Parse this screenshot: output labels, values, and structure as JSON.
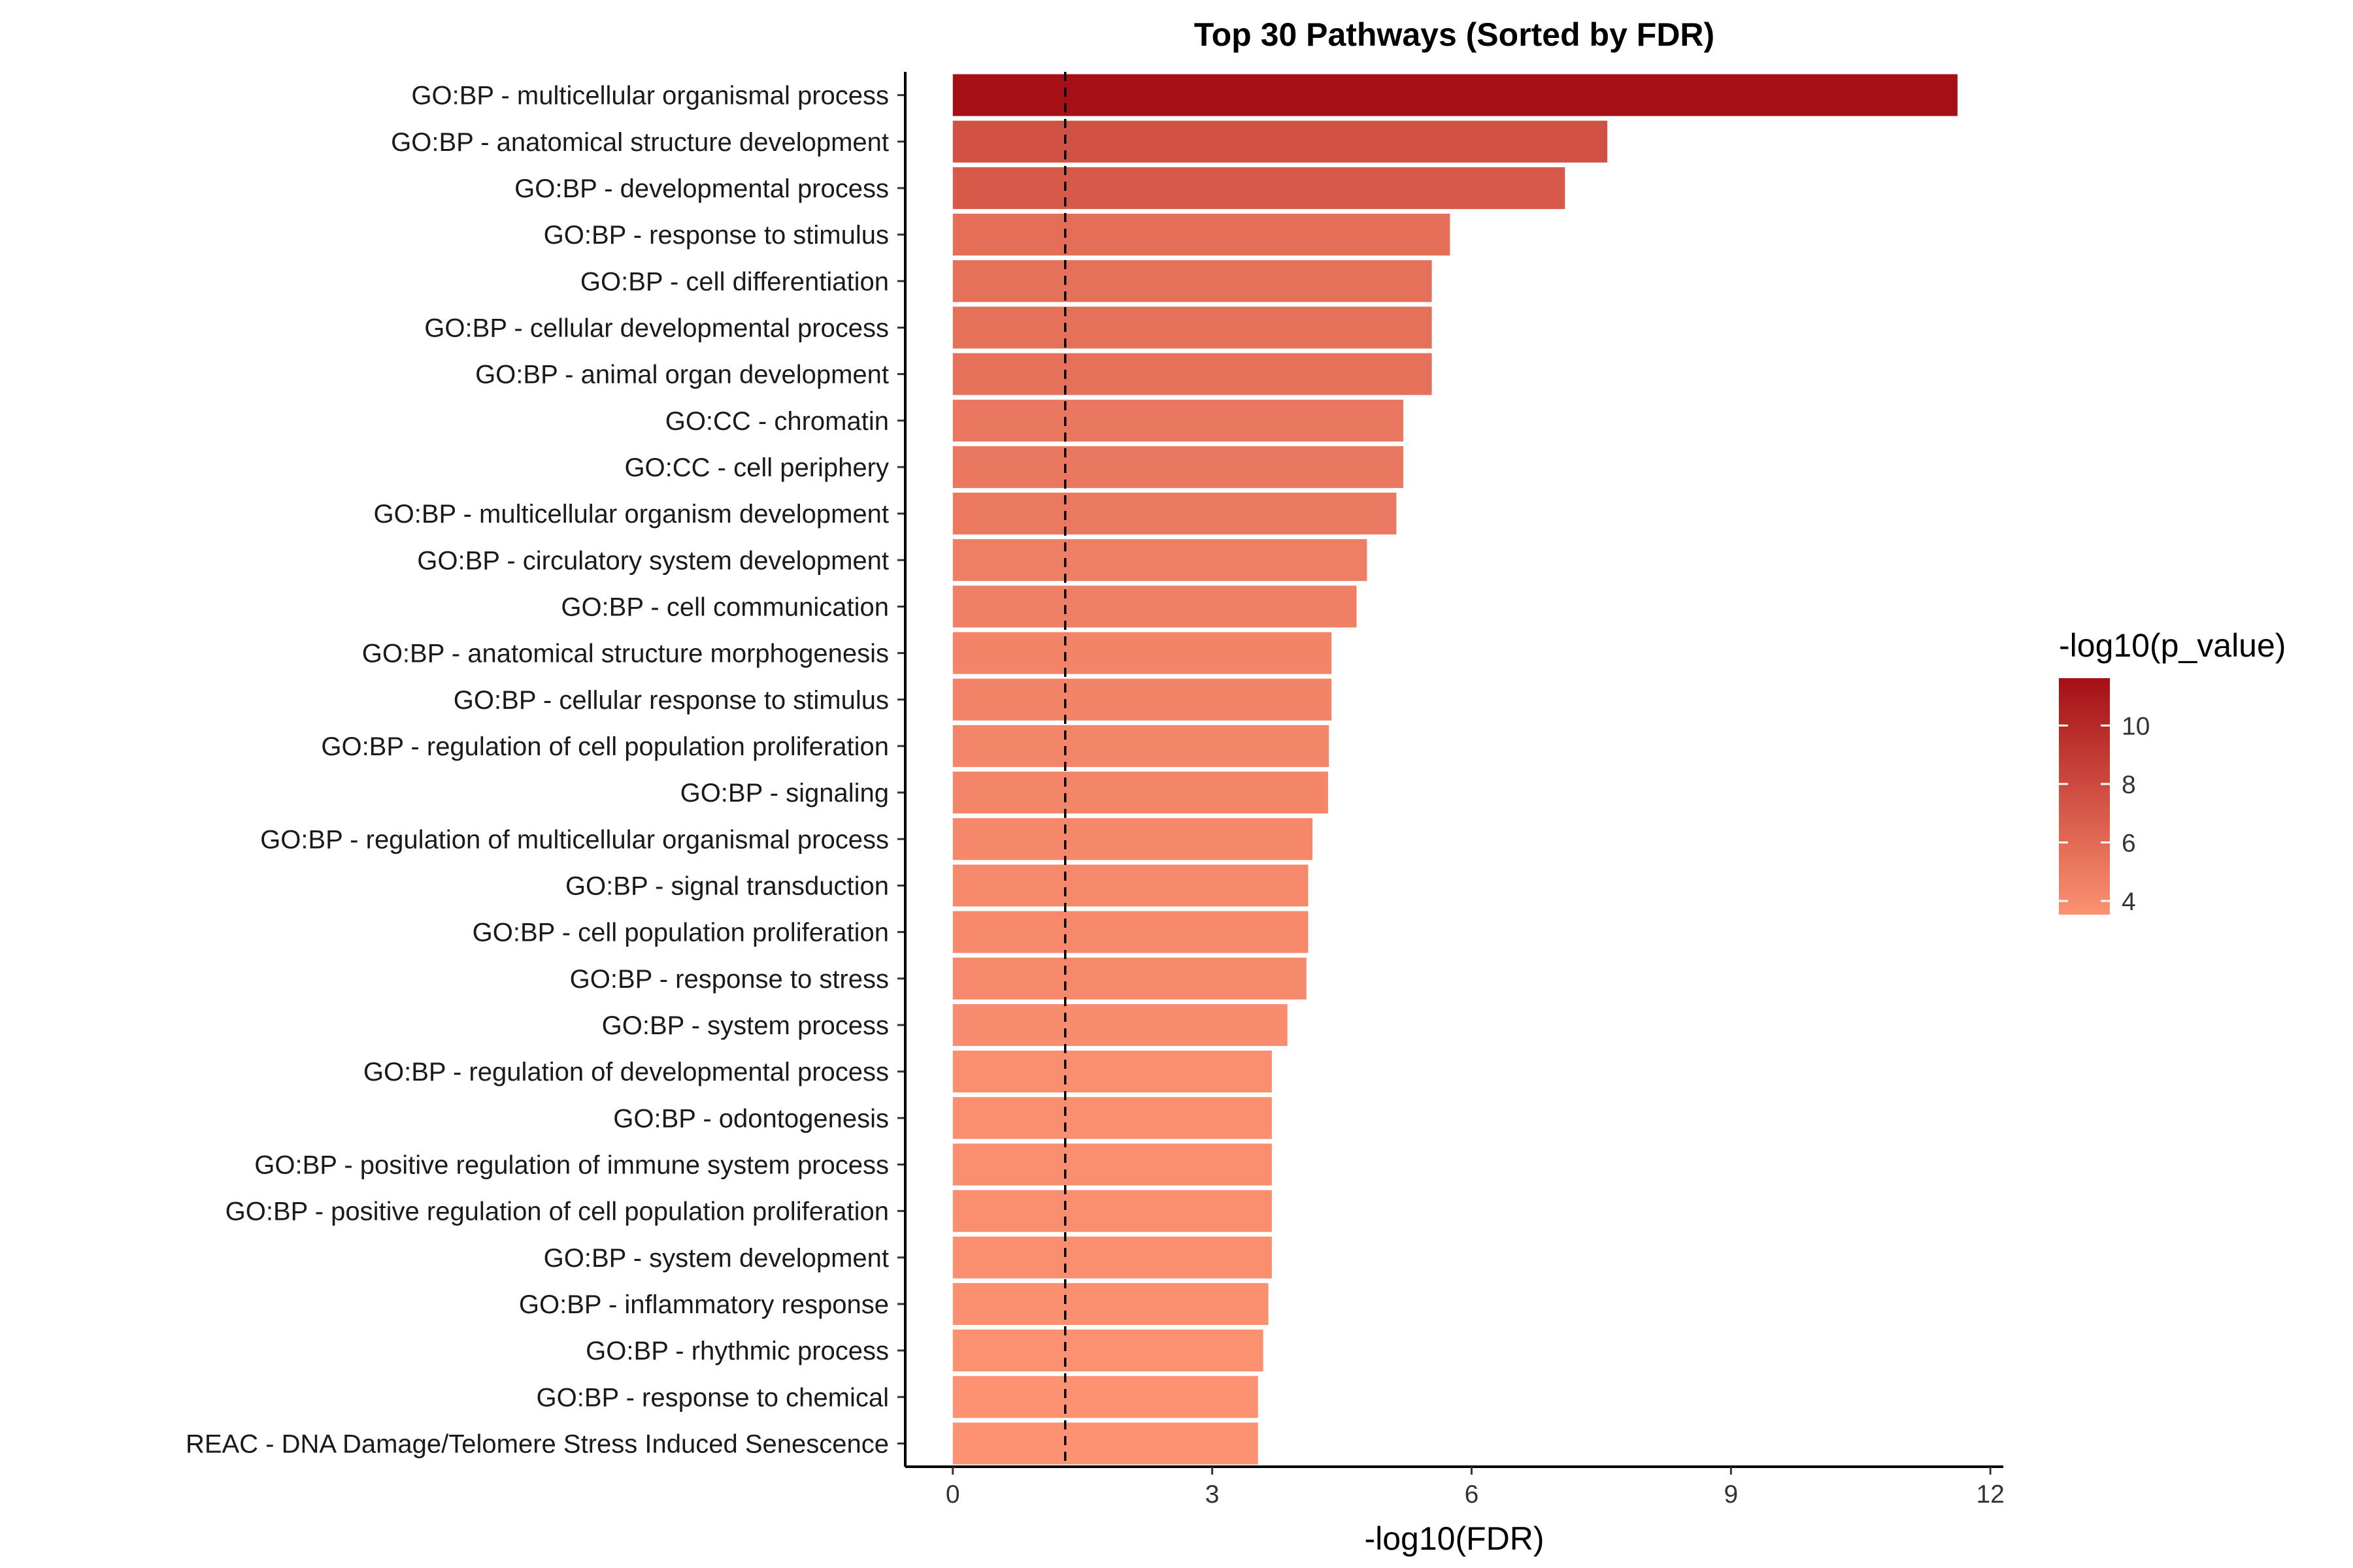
{
  "chart_data": {
    "type": "bar",
    "orientation": "horizontal",
    "title": "Top 30 Pathways (Sorted by FDR)",
    "xlabel": "-log10(FDR)",
    "ylabel": "",
    "xlim": [
      -0.55,
      12.15
    ],
    "x_ticks": [
      0,
      3,
      6,
      9,
      12
    ],
    "grid": false,
    "reference_line": {
      "x": 1.3,
      "style": "dashed"
    },
    "categories": [
      "GO:BP - multicellular organismal process",
      "GO:BP - anatomical structure development",
      "GO:BP - developmental process",
      "GO:BP - response to stimulus",
      "GO:BP - cell differentiation",
      "GO:BP - cellular developmental process",
      "GO:BP - animal organ development",
      "GO:CC - chromatin",
      "GO:CC - cell periphery",
      "GO:BP - multicellular organism development",
      "GO:BP - circulatory system development",
      "GO:BP - cell communication",
      "GO:BP - anatomical structure morphogenesis",
      "GO:BP - cellular response to stimulus",
      "GO:BP - regulation of cell population proliferation",
      "GO:BP - signaling",
      "GO:BP - regulation of multicellular organismal process",
      "GO:BP - signal transduction",
      "GO:BP - cell population proliferation",
      "GO:BP - response to stress",
      "GO:BP - system process",
      "GO:BP - regulation of developmental process",
      "GO:BP - odontogenesis",
      "GO:BP - positive regulation of immune system process",
      "GO:BP - positive regulation of cell population proliferation",
      "GO:BP - system development",
      "GO:BP - inflammatory response",
      "GO:BP - rhythmic process",
      "GO:BP - response to chemical",
      "REAC - DNA Damage/Telomere Stress Induced Senescence"
    ],
    "values": [
      11.62,
      7.57,
      7.08,
      5.75,
      5.54,
      5.54,
      5.54,
      5.21,
      5.21,
      5.13,
      4.79,
      4.67,
      4.38,
      4.38,
      4.35,
      4.34,
      4.16,
      4.11,
      4.11,
      4.09,
      3.87,
      3.69,
      3.69,
      3.69,
      3.69,
      3.69,
      3.65,
      3.59,
      3.53,
      3.53
    ],
    "color_values": [
      11.62,
      7.57,
      7.08,
      5.75,
      5.54,
      5.54,
      5.54,
      5.21,
      5.21,
      5.13,
      4.79,
      4.67,
      4.38,
      4.38,
      4.35,
      4.34,
      4.16,
      4.11,
      4.11,
      4.09,
      3.87,
      3.69,
      3.69,
      3.69,
      3.69,
      3.69,
      3.65,
      3.59,
      3.53,
      3.53
    ],
    "legend": {
      "title": "-log10(p_value)",
      "placement": "right",
      "range": [
        3.53,
        11.62
      ],
      "ticks": [
        4,
        6,
        8,
        10
      ],
      "color_low": "#fc9272",
      "color_high": "#a50f15"
    }
  }
}
